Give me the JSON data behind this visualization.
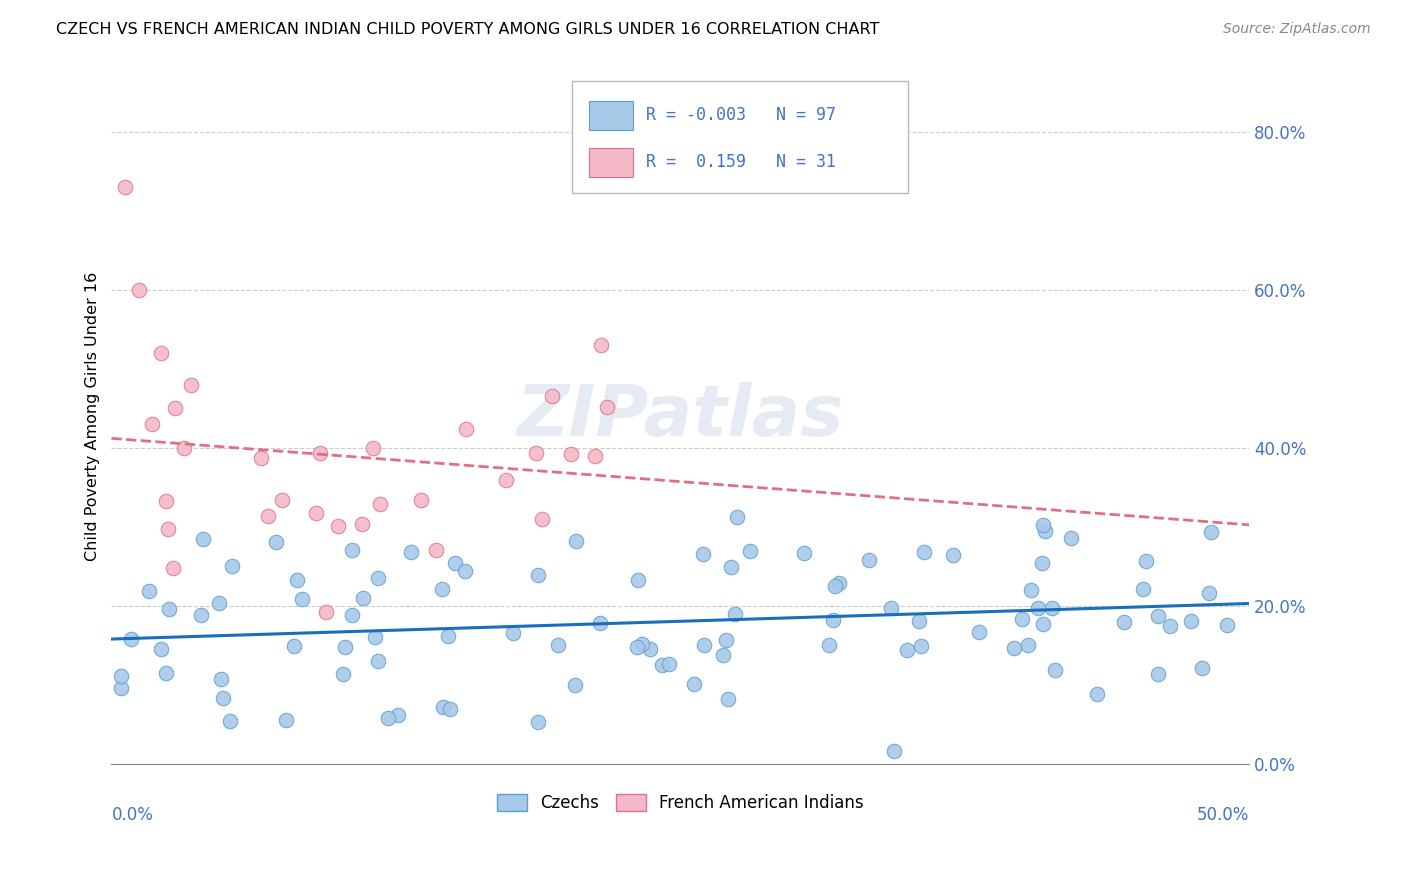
{
  "title": "CZECH VS FRENCH AMERICAN INDIAN CHILD POVERTY AMONG GIRLS UNDER 16 CORRELATION CHART",
  "source": "Source: ZipAtlas.com",
  "ylabel": "Child Poverty Among Girls Under 16",
  "yticks": [
    "0.0%",
    "20.0%",
    "40.0%",
    "60.0%",
    "80.0%"
  ],
  "ytick_vals": [
    0.0,
    0.2,
    0.4,
    0.6,
    0.8
  ],
  "xlim": [
    0.0,
    0.5
  ],
  "ylim": [
    0.0,
    0.88
  ],
  "czech_color": "#a8c8e8",
  "czech_color_dark": "#5a9fd4",
  "french_color": "#f4b8c8",
  "french_color_dark": "#e0708a",
  "czech_R": "-0.003",
  "czech_N": "97",
  "french_R": "0.159",
  "french_N": "31",
  "trendline_czech_color": "#1a6fbd",
  "trendline_french_color": "#e07080",
  "watermark": "ZIPatlas",
  "legend_czechs": "Czechs",
  "legend_french": "French American Indians"
}
